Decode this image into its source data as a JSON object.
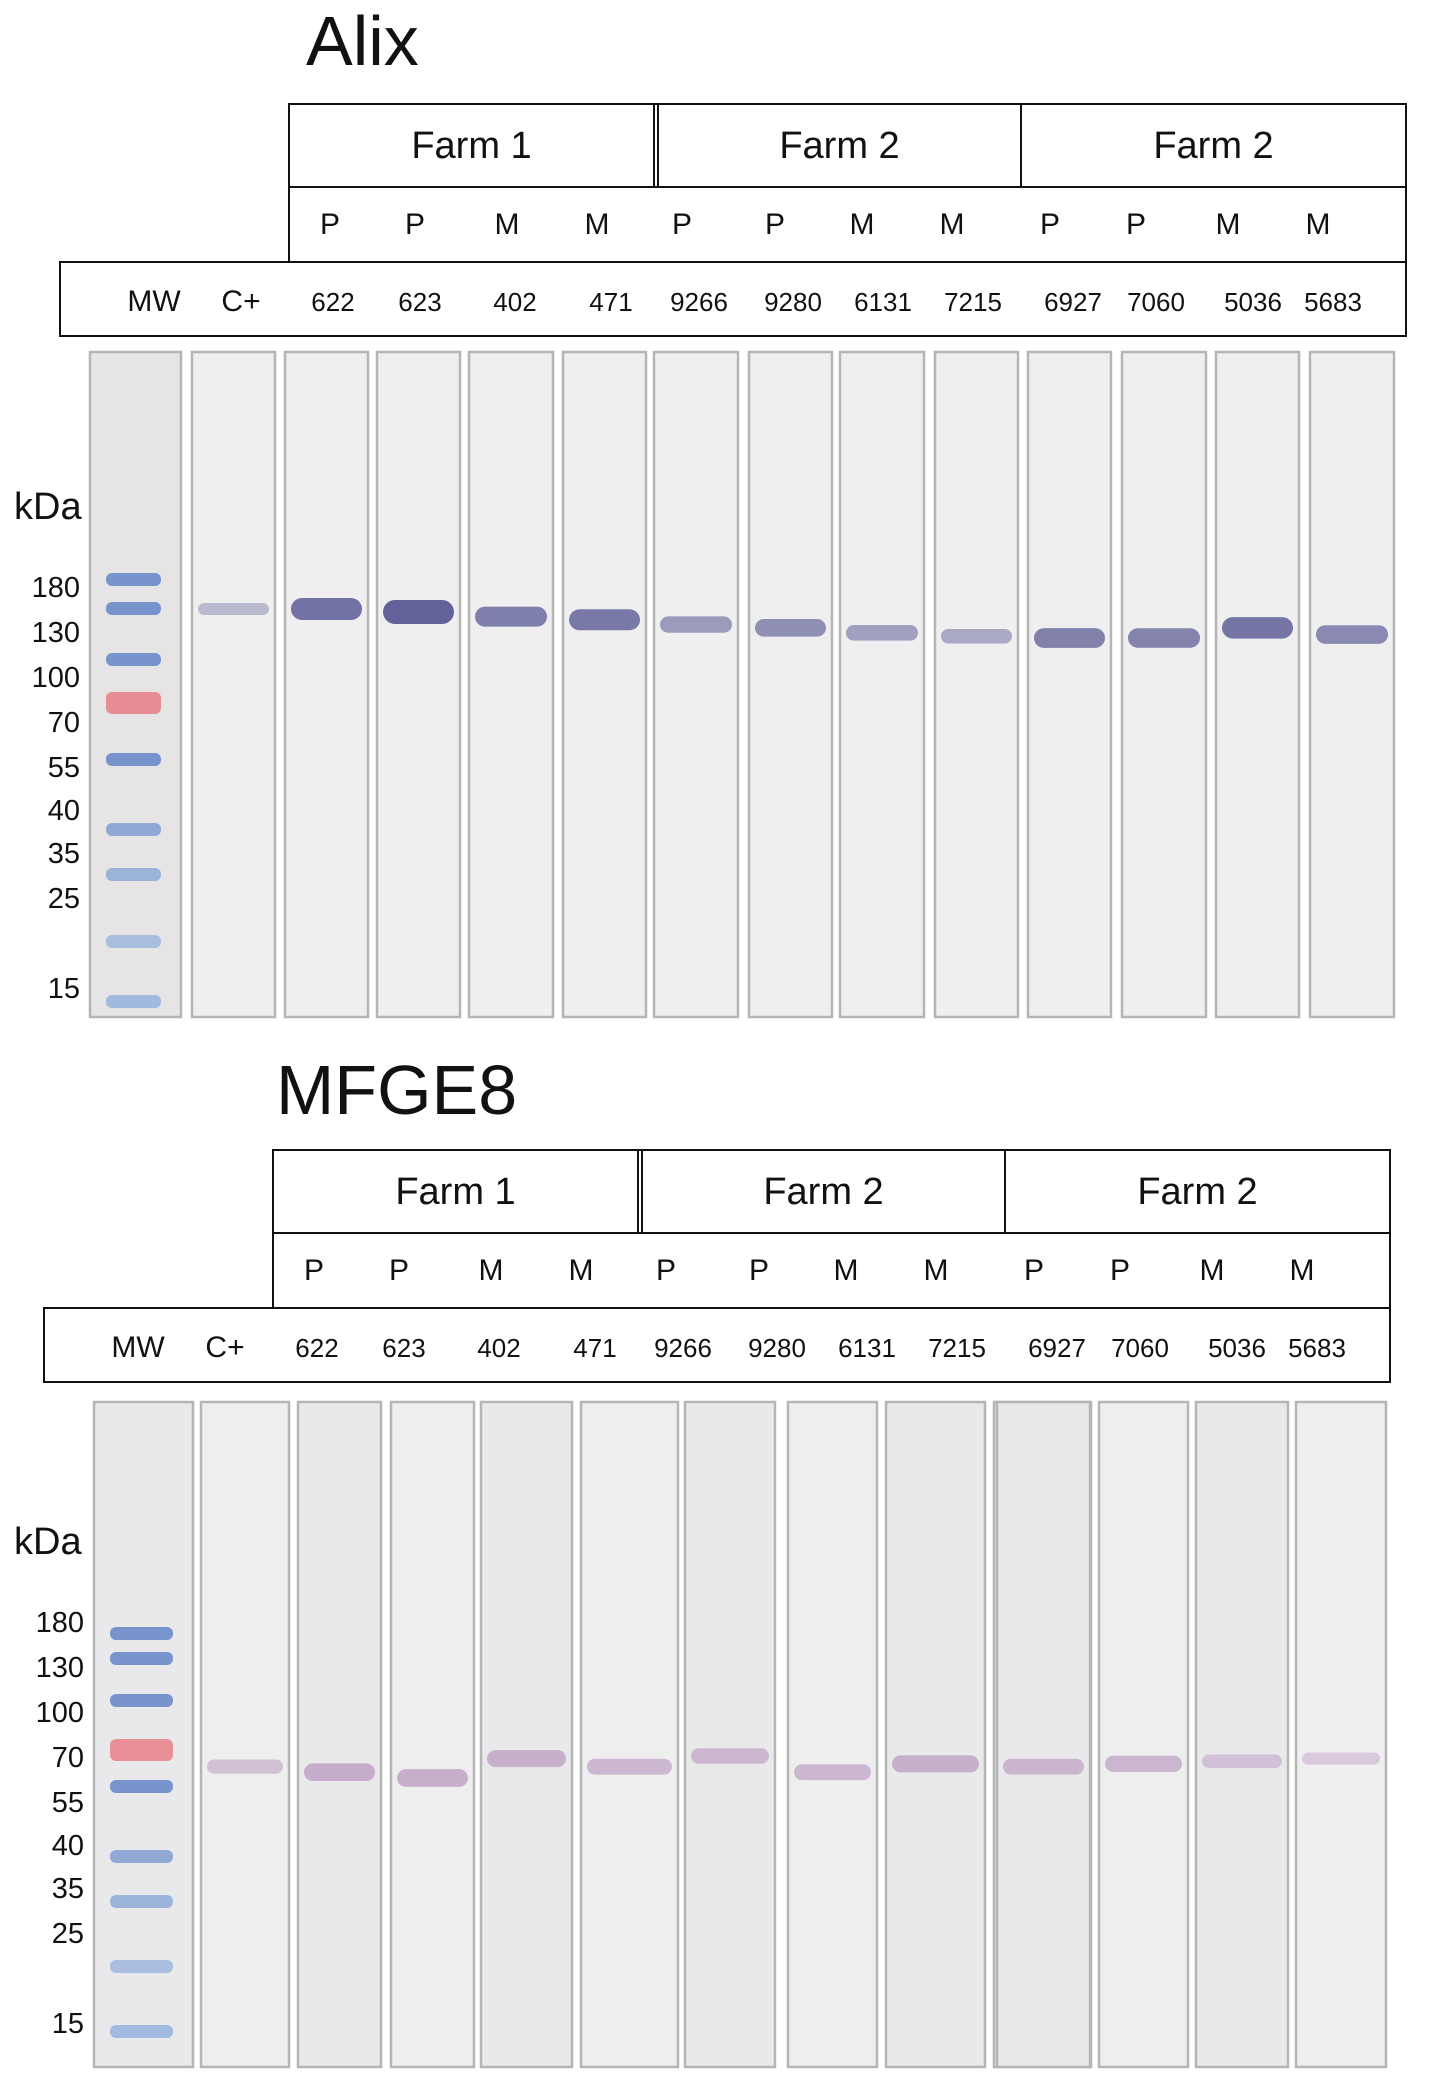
{
  "marker_unit": "kDa",
  "marker_values": [
    "180",
    "130",
    "100",
    "70",
    "55",
    "40",
    "35",
    "25",
    "15"
  ],
  "panels": [
    {
      "title": "Alix",
      "farms": [
        "Farm 1",
        "Farm 2",
        "Farm 2"
      ],
      "sample_types": [
        "P",
        "P",
        "M",
        "M",
        "P",
        "P",
        "M",
        "M",
        "P",
        "P",
        "M",
        "M"
      ],
      "lane_labels": [
        "MW",
        "C+",
        "622",
        "623",
        "402",
        "471",
        "9266",
        "9280",
        "6131",
        "7215",
        "6927",
        "7060",
        "5036",
        "5683"
      ],
      "band_color": "#5a5a95",
      "band_intensity": [
        0,
        0.15,
        0.85,
        1.0,
        0.72,
        0.78,
        0.45,
        0.55,
        0.4,
        0.32,
        0.7,
        0.68,
        0.82,
        0.62
      ],
      "band_kda": [
        0,
        130,
        130,
        128,
        125,
        123,
        120,
        118,
        115,
        113,
        112,
        112,
        118,
        114
      ]
    },
    {
      "title": "MFGE8",
      "farms": [
        "Farm 1",
        "Farm 2",
        "Farm 2"
      ],
      "sample_types": [
        "P",
        "P",
        "M",
        "M",
        "P",
        "P",
        "M",
        "M",
        "P",
        "P",
        "M",
        "M"
      ],
      "lane_labels": [
        "MW",
        "C+",
        "622",
        "623",
        "402",
        "471",
        "9266",
        "9280",
        "6131",
        "7215",
        "6927",
        "7060",
        "5036",
        "5683"
      ],
      "band_color": "#b08ab8",
      "band_intensity": [
        0,
        0.3,
        0.55,
        0.55,
        0.5,
        0.42,
        0.4,
        0.42,
        0.5,
        0.45,
        0.42,
        0.45,
        0.25,
        0.15
      ],
      "band_kda": [
        0,
        62,
        60,
        58,
        65,
        62,
        66,
        60,
        63,
        62,
        62,
        63,
        64,
        65
      ]
    }
  ]
}
